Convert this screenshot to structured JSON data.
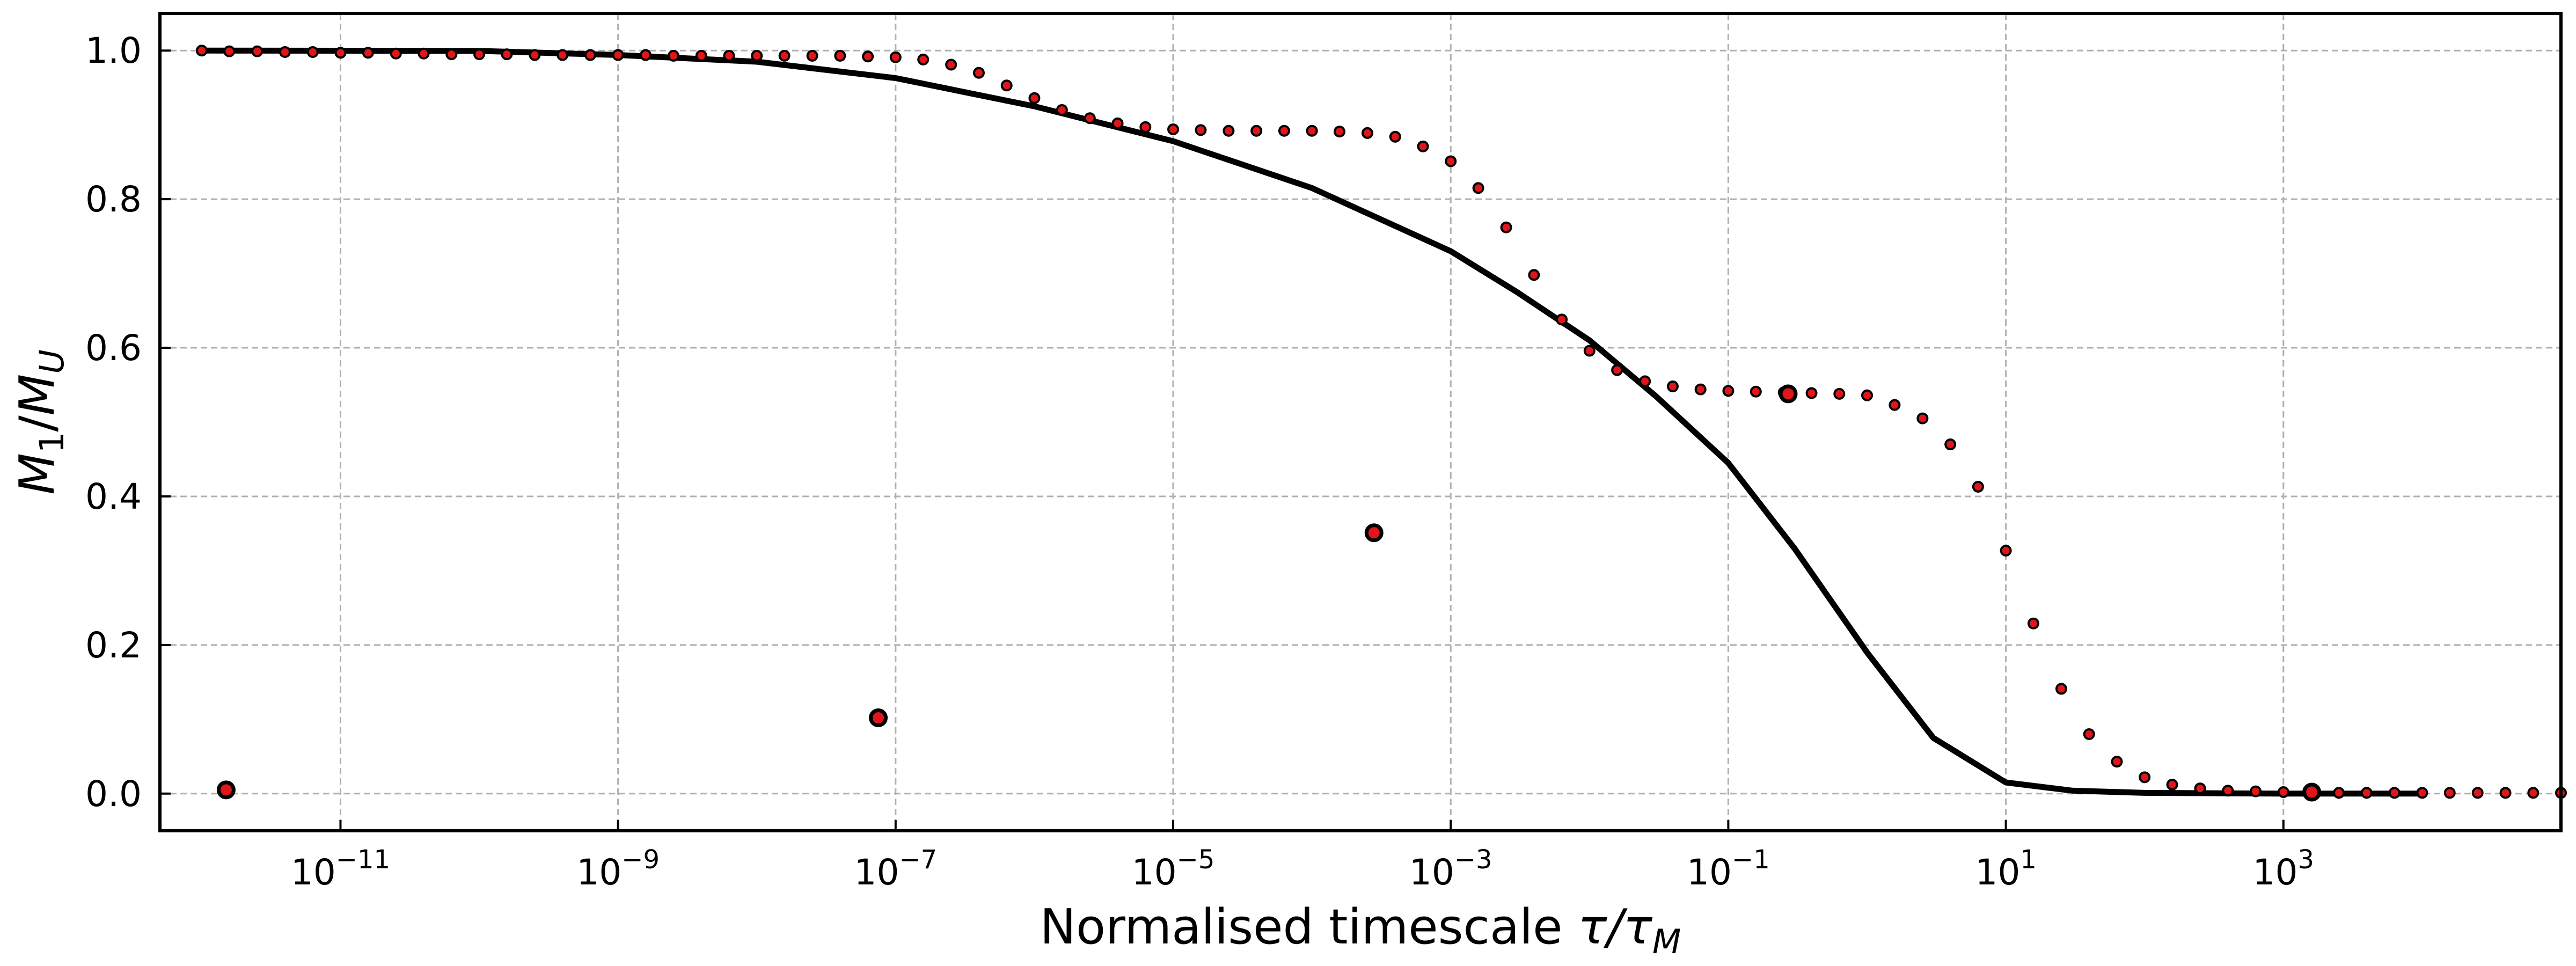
{
  "chart_data": {
    "type": "scatter",
    "title": "",
    "xlabel": "Normalised timescale τ/τ_M",
    "ylabel": "M_1/M_U",
    "x_scale": "log",
    "xlim": [
      5e-13,
      100000.0
    ],
    "ylim": [
      -0.05,
      1.05
    ],
    "x_ticks": [
      1e-11,
      1e-09,
      1e-07,
      1e-05,
      0.001,
      0.1,
      10.0,
      1000.0
    ],
    "x_tick_exponents": [
      "−11",
      "−9",
      "−7",
      "−5",
      "−3",
      "−1",
      "1",
      "3"
    ],
    "y_ticks": [
      "0.0",
      "0.2",
      "0.4",
      "0.6",
      "0.8",
      "1.0"
    ],
    "grid": true,
    "legend": "none",
    "colors": {
      "points": "#e0161a",
      "edge": "#000000",
      "curve": "#000000",
      "grid": "#b0b0b0"
    },
    "series": [
      {
        "kind": "line",
        "points": [
          [
            1e-12,
            1.0
          ],
          [
            1e-10,
            0.9995
          ],
          [
            1e-09,
            0.994
          ],
          [
            1e-08,
            0.985
          ],
          [
            1e-07,
            0.963
          ],
          [
            1e-06,
            0.925
          ],
          [
            1e-05,
            0.878
          ],
          [
            0.0001,
            0.815
          ],
          [
            0.001,
            0.73
          ],
          [
            0.003,
            0.675
          ],
          [
            0.01,
            0.61
          ],
          [
            0.03,
            0.535
          ],
          [
            0.1,
            0.445
          ],
          [
            0.3,
            0.33
          ],
          [
            1,
            0.19
          ],
          [
            3,
            0.075
          ],
          [
            10,
            0.015
          ],
          [
            30,
            0.004
          ],
          [
            100,
            0.001
          ],
          [
            1000.0,
            0.0
          ],
          [
            10000.0,
            0.0
          ]
        ]
      },
      {
        "kind": "dots",
        "points": [
          [
            1e-12,
            1.0
          ],
          [
            1.58e-12,
            0.999
          ],
          [
            2.51e-12,
            0.999
          ],
          [
            3.98e-12,
            0.998
          ],
          [
            6.31e-12,
            0.998
          ],
          [
            1e-11,
            0.997
          ],
          [
            1.58e-11,
            0.997
          ],
          [
            2.51e-11,
            0.996
          ],
          [
            3.98e-11,
            0.996
          ],
          [
            6.31e-11,
            0.995
          ],
          [
            1e-10,
            0.995
          ],
          [
            1.58e-10,
            0.995
          ],
          [
            2.51e-10,
            0.994
          ],
          [
            3.98e-10,
            0.994
          ],
          [
            6.31e-10,
            0.994
          ],
          [
            1e-09,
            0.994
          ],
          [
            1.58e-09,
            0.994
          ],
          [
            2.51e-09,
            0.993
          ],
          [
            3.98e-09,
            0.993
          ],
          [
            6.31e-09,
            0.993
          ],
          [
            1e-08,
            0.993
          ],
          [
            1.58e-08,
            0.993
          ],
          [
            2.51e-08,
            0.993
          ],
          [
            3.98e-08,
            0.993
          ],
          [
            6.31e-08,
            0.992
          ],
          [
            1e-07,
            0.991
          ],
          [
            1.58e-07,
            0.988
          ],
          [
            2.51e-07,
            0.981
          ],
          [
            3.98e-07,
            0.97
          ],
          [
            6.31e-07,
            0.953
          ],
          [
            1e-06,
            0.936
          ],
          [
            1.58e-06,
            0.92
          ],
          [
            2.51e-06,
            0.909
          ],
          [
            3.98e-06,
            0.902
          ],
          [
            6.31e-06,
            0.897
          ],
          [
            1e-05,
            0.894
          ],
          [
            1.58e-05,
            0.893
          ],
          [
            2.51e-05,
            0.892
          ],
          [
            3.98e-05,
            0.892
          ],
          [
            6.31e-05,
            0.892
          ],
          [
            0.0001,
            0.892
          ],
          [
            0.000158,
            0.891
          ],
          [
            0.000251,
            0.889
          ],
          [
            0.000398,
            0.884
          ],
          [
            0.000631,
            0.871
          ],
          [
            0.001,
            0.851
          ],
          [
            0.00158,
            0.815
          ],
          [
            0.00251,
            0.762
          ],
          [
            0.00398,
            0.698
          ],
          [
            0.00631,
            0.638
          ],
          [
            0.01,
            0.596
          ],
          [
            0.0158,
            0.57
          ],
          [
            0.0251,
            0.555
          ],
          [
            0.0398,
            0.548
          ],
          [
            0.0631,
            0.544
          ],
          [
            0.1,
            0.542
          ],
          [
            0.158,
            0.541
          ],
          [
            0.251,
            0.54
          ],
          [
            0.398,
            0.539
          ],
          [
            0.631,
            0.538
          ],
          [
            1.0,
            0.536
          ],
          [
            1.58,
            0.523
          ],
          [
            2.51,
            0.505
          ],
          [
            3.98,
            0.47
          ],
          [
            6.31,
            0.413
          ],
          [
            10.0,
            0.327
          ],
          [
            15.8,
            0.229
          ],
          [
            25.1,
            0.141
          ],
          [
            39.8,
            0.08
          ],
          [
            63.1,
            0.043
          ],
          [
            100.0,
            0.022
          ],
          [
            158.0,
            0.012
          ],
          [
            251.0,
            0.007
          ],
          [
            398.0,
            0.004
          ],
          [
            631.0,
            0.003
          ],
          [
            1000.0,
            0.002
          ],
          [
            1580.0,
            0.002
          ],
          [
            2510.0,
            0.001
          ],
          [
            3980.0,
            0.001
          ],
          [
            6310.0,
            0.001
          ],
          [
            10000.0,
            0.001
          ],
          [
            15800.0,
            0.001
          ],
          [
            25100.0,
            0.001
          ],
          [
            39800.0,
            0.001
          ],
          [
            63100.0,
            0.001
          ],
          [
            100000.0,
            0.001
          ]
        ]
      },
      {
        "kind": "large-dots",
        "points": [
          [
            1.5e-12,
            0.005
          ],
          [
            7.5e-08,
            0.102
          ],
          [
            0.00028,
            0.351
          ],
          [
            0.27,
            0.538
          ],
          [
            1600.0,
            0.002
          ]
        ]
      }
    ]
  }
}
